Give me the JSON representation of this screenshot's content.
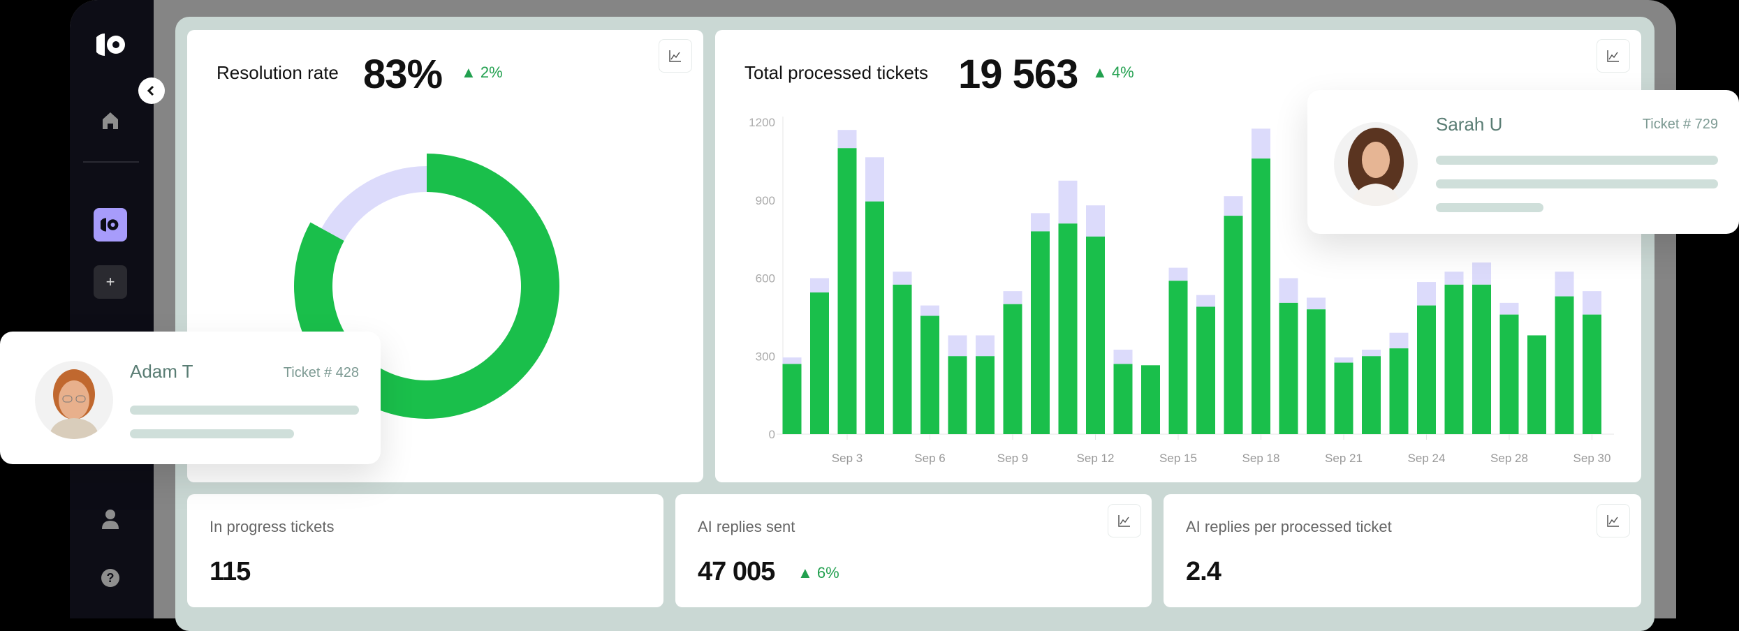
{
  "sidebar": {
    "icons": [
      "logo-icon",
      "home-icon",
      "app-icon",
      "plus-icon",
      "user-icon",
      "help-icon"
    ],
    "collapse_icon": "chevron-left-icon",
    "plus_label": "+",
    "help_label": "?"
  },
  "colors": {
    "accent_green": "#1abf4b",
    "lavender": "#dcdbfb",
    "purple": "#a79cfb",
    "delta_green": "#22a04f"
  },
  "resolution": {
    "title": "Resolution rate",
    "value": "83%",
    "delta": "2%",
    "percent": 83
  },
  "processed": {
    "title": "Total processed tickets",
    "value": "19 563",
    "delta": "4%"
  },
  "in_progress": {
    "label": "In progress tickets",
    "value": "115"
  },
  "ai_replies": {
    "label": "AI replies sent",
    "value": "47 005",
    "delta": "6%"
  },
  "ai_per_ticket": {
    "label": "AI replies per processed ticket",
    "value": "2.4"
  },
  "people": [
    {
      "name": "Adam T",
      "ticket": "Ticket # 428"
    },
    {
      "name": "Sarah U",
      "ticket": "Ticket # 729"
    }
  ],
  "chart_data": {
    "type": "bar",
    "stacked": true,
    "ylim": [
      0,
      1200
    ],
    "yticks": [
      "0",
      "300",
      "600",
      "900",
      "1200"
    ],
    "xticks": [
      {
        "label": "Sep 3",
        "bar": 3
      },
      {
        "label": "Sep 6",
        "bar": 6
      },
      {
        "label": "Sep 9",
        "bar": 9
      },
      {
        "label": "Sep 12",
        "bar": 12
      },
      {
        "label": "Sep 15",
        "bar": 15
      },
      {
        "label": "Sep 18",
        "bar": 18
      },
      {
        "label": "Sep 21",
        "bar": 21
      },
      {
        "label": "Sep 24",
        "bar": 24
      },
      {
        "label": "Sep 28",
        "bar": 27
      },
      {
        "label": "Sep 30",
        "bar": 30
      }
    ],
    "series": [
      {
        "color": "#1abf4b",
        "values": [
          270,
          545,
          1100,
          895,
          575,
          455,
          300,
          300,
          500,
          780,
          810,
          760,
          270,
          265,
          590,
          490,
          840,
          1060,
          505,
          480,
          275,
          300,
          330,
          495,
          575,
          575,
          460,
          380,
          530,
          460
        ]
      },
      {
        "color": "#dcdbfb",
        "values": [
          25,
          55,
          70,
          170,
          50,
          40,
          80,
          80,
          50,
          70,
          165,
          120,
          55,
          0,
          50,
          45,
          75,
          115,
          95,
          45,
          20,
          25,
          60,
          90,
          50,
          85,
          45,
          0,
          95,
          90
        ]
      }
    ],
    "grid": false
  }
}
